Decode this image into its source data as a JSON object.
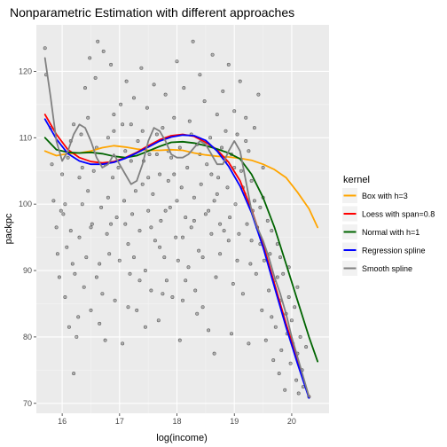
{
  "chart_data": {
    "type": "scatter",
    "title": "Nonparametric Estimation with different approaches",
    "xlabel": "log(income)",
    "ylabel": "packpc",
    "xlim": [
      15.55,
      20.65
    ],
    "ylim": [
      68.5,
      127.0
    ],
    "x_ticks": [
      16,
      17,
      18,
      19,
      20
    ],
    "y_ticks": [
      70,
      80,
      90,
      100,
      110,
      120
    ],
    "grid": true,
    "panel_color": "#ebebeb",
    "legend": {
      "title": "kernel",
      "position": "right",
      "entries": [
        {
          "label": "Box with h=3",
          "color": "#ffa500"
        },
        {
          "label": "Loess with span=0.8",
          "color": "#ff0000"
        },
        {
          "label": "Normal with h=1",
          "color": "#006400"
        },
        {
          "label": "Regression spline",
          "color": "#0000ff"
        },
        {
          "label": "Smooth spline",
          "color": "#808080"
        }
      ]
    },
    "points": [
      [
        15.7,
        123.5
      ],
      [
        15.72,
        119.5
      ],
      [
        15.8,
        111.5
      ],
      [
        15.82,
        106.0
      ],
      [
        15.85,
        100.5
      ],
      [
        15.9,
        96.5
      ],
      [
        15.92,
        92.5
      ],
      [
        15.95,
        89.0
      ],
      [
        15.98,
        99.0
      ],
      [
        16.0,
        104.5
      ],
      [
        16.02,
        98.5
      ],
      [
        16.05,
        86.0
      ],
      [
        16.08,
        93.5
      ],
      [
        16.1,
        107.0
      ],
      [
        16.12,
        81.5
      ],
      [
        16.15,
        109.5
      ],
      [
        16.18,
        91.0
      ],
      [
        16.2,
        74.5
      ],
      [
        16.22,
        89.5
      ],
      [
        16.25,
        80.0
      ],
      [
        16.28,
        83.0
      ],
      [
        16.3,
        95.0
      ],
      [
        16.33,
        110.5
      ],
      [
        16.35,
        100.0
      ],
      [
        16.38,
        87.5
      ],
      [
        16.4,
        117.5
      ],
      [
        16.42,
        92.0
      ],
      [
        16.45,
        113.0
      ],
      [
        16.48,
        122.0
      ],
      [
        16.5,
        84.0
      ],
      [
        16.52,
        97.0
      ],
      [
        16.55,
        105.0
      ],
      [
        16.58,
        119.0
      ],
      [
        16.6,
        89.0
      ],
      [
        16.62,
        124.5
      ],
      [
        16.65,
        82.0
      ],
      [
        16.68,
        99.5
      ],
      [
        16.7,
        86.5
      ],
      [
        16.72,
        123.0
      ],
      [
        16.75,
        79.5
      ],
      [
        16.78,
        95.5
      ],
      [
        16.8,
        110.0
      ],
      [
        16.82,
        92.5
      ],
      [
        16.85,
        121.0
      ],
      [
        16.88,
        104.0
      ],
      [
        16.9,
        113.5
      ],
      [
        16.92,
        85.5
      ],
      [
        16.95,
        98.0
      ],
      [
        16.98,
        105.5
      ],
      [
        17.0,
        91.5
      ],
      [
        17.02,
        115.0
      ],
      [
        17.05,
        79.0
      ],
      [
        17.08,
        100.5
      ],
      [
        17.1,
        108.0
      ],
      [
        17.12,
        118.5
      ],
      [
        17.15,
        94.0
      ],
      [
        17.18,
        89.5
      ],
      [
        17.2,
        112.0
      ],
      [
        17.22,
        98.5
      ],
      [
        17.25,
        116.0
      ],
      [
        17.28,
        102.0
      ],
      [
        17.3,
        84.0
      ],
      [
        17.32,
        109.5
      ],
      [
        17.35,
        96.0
      ],
      [
        17.38,
        120.5
      ],
      [
        17.4,
        103.0
      ],
      [
        17.42,
        106.5
      ],
      [
        17.45,
        90.0
      ],
      [
        17.48,
        114.5
      ],
      [
        17.5,
        99.0
      ],
      [
        17.52,
        107.5
      ],
      [
        17.55,
        87.0
      ],
      [
        17.58,
        101.5
      ],
      [
        17.6,
        118.0
      ],
      [
        17.62,
        94.5
      ],
      [
        17.65,
        110.5
      ],
      [
        17.68,
        82.5
      ],
      [
        17.7,
        104.5
      ],
      [
        17.72,
        97.5
      ],
      [
        17.75,
        111.5
      ],
      [
        17.78,
        92.0
      ],
      [
        17.8,
        116.5
      ],
      [
        17.82,
        88.5
      ],
      [
        17.85,
        103.5
      ],
      [
        17.88,
        99.5
      ],
      [
        17.9,
        107.0
      ],
      [
        17.92,
        86.0
      ],
      [
        17.95,
        113.0
      ],
      [
        17.98,
        95.0
      ],
      [
        18.0,
        121.5
      ],
      [
        18.02,
        91.5
      ],
      [
        18.05,
        108.5
      ],
      [
        18.08,
        102.5
      ],
      [
        18.1,
        85.5
      ],
      [
        18.12,
        117.5
      ],
      [
        18.15,
        98.0
      ],
      [
        18.18,
        105.5
      ],
      [
        18.2,
        90.5
      ],
      [
        18.22,
        112.5
      ],
      [
        18.25,
        96.5
      ],
      [
        18.28,
        124.5
      ],
      [
        18.3,
        101.0
      ],
      [
        18.32,
        87.0
      ],
      [
        18.35,
        109.0
      ],
      [
        18.38,
        93.0
      ],
      [
        18.4,
        119.5
      ],
      [
        18.42,
        103.0
      ],
      [
        18.45,
        84.5
      ],
      [
        18.48,
        115.5
      ],
      [
        18.5,
        98.5
      ],
      [
        18.52,
        106.0
      ],
      [
        18.55,
        81.0
      ],
      [
        18.58,
        110.0
      ],
      [
        18.6,
        95.5
      ],
      [
        18.62,
        122.5
      ],
      [
        18.65,
        100.5
      ],
      [
        18.68,
        89.0
      ],
      [
        18.7,
        113.5
      ],
      [
        18.72,
        104.0
      ],
      [
        18.75,
        92.5
      ],
      [
        18.78,
        108.5
      ],
      [
        18.8,
        117.0
      ],
      [
        18.82,
        96.0
      ],
      [
        18.85,
        111.0
      ],
      [
        18.88,
        102.5
      ],
      [
        18.9,
        121.0
      ],
      [
        18.92,
        98.0
      ],
      [
        18.95,
        107.5
      ],
      [
        18.98,
        88.0
      ],
      [
        19.0,
        114.0
      ],
      [
        19.02,
        100.0
      ],
      [
        19.05,
        110.5
      ],
      [
        19.08,
        95.5
      ],
      [
        19.1,
        118.5
      ],
      [
        19.12,
        105.0
      ],
      [
        19.15,
        86.5
      ],
      [
        19.18,
        101.5
      ],
      [
        19.2,
        113.0
      ],
      [
        19.22,
        97.0
      ],
      [
        19.25,
        108.0
      ],
      [
        19.28,
        91.0
      ],
      [
        19.3,
        103.5
      ],
      [
        19.32,
        99.0
      ],
      [
        19.35,
        111.5
      ],
      [
        19.38,
        89.5
      ],
      [
        19.4,
        96.5
      ],
      [
        19.42,
        116.5
      ],
      [
        19.45,
        94.0
      ],
      [
        19.48,
        84.0
      ],
      [
        19.5,
        101.0
      ],
      [
        19.52,
        91.5
      ],
      [
        19.55,
        79.5
      ],
      [
        19.58,
        97.5
      ],
      [
        19.6,
        87.0
      ],
      [
        19.62,
        92.5
      ],
      [
        19.65,
        83.0
      ],
      [
        19.68,
        76.5
      ],
      [
        19.7,
        88.5
      ],
      [
        19.72,
        81.5
      ],
      [
        19.75,
        94.0
      ],
      [
        19.78,
        74.5
      ],
      [
        19.8,
        85.5
      ],
      [
        19.82,
        78.0
      ],
      [
        19.85,
        89.5
      ],
      [
        19.88,
        72.0
      ],
      [
        19.9,
        83.5
      ],
      [
        19.92,
        80.5
      ],
      [
        19.95,
        86.0
      ],
      [
        19.98,
        76.0
      ],
      [
        20.0,
        82.5
      ],
      [
        20.02,
        79.0
      ],
      [
        20.05,
        84.5
      ],
      [
        20.08,
        73.5
      ],
      [
        20.1,
        77.5
      ],
      [
        20.12,
        71.5
      ],
      [
        20.15,
        80.0
      ],
      [
        20.18,
        75.0
      ],
      [
        20.2,
        72.5
      ],
      [
        20.25,
        78.5
      ],
      [
        20.3,
        71.0
      ],
      [
        16.05,
        100.0
      ],
      [
        16.3,
        104.0
      ],
      [
        16.6,
        108.5
      ],
      [
        16.9,
        111.0
      ],
      [
        17.2,
        106.5
      ],
      [
        17.5,
        104.0
      ],
      [
        17.8,
        99.0
      ],
      [
        18.1,
        95.0
      ],
      [
        18.4,
        107.5
      ],
      [
        18.7,
        101.5
      ],
      [
        19.0,
        105.5
      ],
      [
        19.3,
        94.5
      ],
      [
        16.15,
        96.0
      ],
      [
        16.45,
        102.0
      ],
      [
        16.75,
        106.0
      ],
      [
        17.05,
        112.0
      ],
      [
        17.35,
        88.5
      ],
      [
        17.65,
        107.5
      ],
      [
        17.95,
        104.5
      ],
      [
        18.25,
        110.5
      ],
      [
        18.55,
        99.0
      ],
      [
        18.85,
        106.5
      ],
      [
        19.15,
        102.5
      ],
      [
        19.45,
        99.5
      ],
      [
        19.75,
        89.0
      ],
      [
        16.2,
        112.0
      ],
      [
        16.5,
        96.5
      ],
      [
        16.8,
        101.0
      ],
      [
        17.1,
        97.0
      ],
      [
        17.4,
        111.0
      ],
      [
        17.7,
        93.5
      ],
      [
        18.0,
        100.5
      ],
      [
        18.3,
        97.5
      ],
      [
        18.6,
        104.5
      ],
      [
        18.9,
        94.5
      ],
      [
        19.2,
        109.5
      ],
      [
        19.5,
        105.5
      ],
      [
        19.8,
        92.0
      ],
      [
        20.1,
        87.5
      ],
      [
        16.65,
        91.0
      ],
      [
        17.15,
        84.5
      ],
      [
        17.45,
        81.5
      ],
      [
        17.75,
        86.5
      ],
      [
        18.05,
        79.5
      ],
      [
        18.35,
        83.5
      ],
      [
        18.65,
        77.5
      ],
      [
        18.95,
        80.5
      ],
      [
        19.25,
        79.0
      ],
      [
        16.35,
        105.5
      ],
      [
        16.85,
        97.0
      ],
      [
        17.25,
        92.0
      ],
      [
        17.55,
        96.5
      ],
      [
        17.85,
        108.0
      ],
      [
        18.15,
        88.5
      ],
      [
        18.45,
        92.0
      ],
      [
        18.75,
        97.0
      ],
      [
        19.05,
        91.5
      ],
      [
        19.35,
        100.5
      ],
      [
        19.65,
        96.0
      ],
      [
        19.95,
        90.5
      ]
    ],
    "series": [
      {
        "name": "Box with h=3",
        "color": "#ffa500",
        "x": [
          15.7,
          15.9,
          16.1,
          16.3,
          16.5,
          16.7,
          16.9,
          17.1,
          17.3,
          17.5,
          17.7,
          17.9,
          18.1,
          18.3,
          18.5,
          18.7,
          18.9,
          19.1,
          19.3,
          19.5,
          19.7,
          19.9,
          20.1,
          20.3,
          20.45
        ],
        "y": [
          108.0,
          107.3,
          107.6,
          107.7,
          108.0,
          108.5,
          108.8,
          108.6,
          108.3,
          108.1,
          108.1,
          108.2,
          108.1,
          107.7,
          107.4,
          107.2,
          107.1,
          106.9,
          106.6,
          106.0,
          105.2,
          104.0,
          101.8,
          99.3,
          96.5
        ]
      },
      {
        "name": "Loess with span=0.8",
        "color": "#ff0000",
        "x": [
          15.7,
          15.9,
          16.1,
          16.3,
          16.5,
          16.7,
          16.9,
          17.1,
          17.3,
          17.5,
          17.7,
          17.9,
          18.1,
          18.3,
          18.5,
          18.7,
          18.9,
          19.1,
          19.3,
          19.5,
          19.7,
          19.9,
          20.1,
          20.3
        ],
        "y": [
          113.5,
          110.5,
          108.2,
          107.0,
          106.4,
          106.2,
          106.4,
          107.0,
          107.8,
          108.8,
          109.7,
          110.3,
          110.5,
          110.2,
          109.3,
          108.2,
          106.3,
          103.5,
          99.2,
          94.0,
          88.0,
          82.0,
          76.5,
          71.0
        ]
      },
      {
        "name": "Normal with h=1",
        "color": "#006400",
        "x": [
          15.7,
          15.9,
          16.1,
          16.3,
          16.5,
          16.7,
          16.9,
          17.1,
          17.3,
          17.5,
          17.7,
          17.9,
          18.1,
          18.3,
          18.5,
          18.7,
          18.9,
          19.1,
          19.3,
          19.5,
          19.7,
          19.9,
          20.1,
          20.3,
          20.45
        ],
        "y": [
          110.0,
          108.2,
          107.8,
          107.7,
          107.8,
          107.6,
          107.2,
          107.0,
          107.3,
          108.0,
          108.7,
          109.3,
          109.4,
          109.2,
          108.8,
          108.3,
          107.7,
          106.8,
          104.5,
          101.0,
          96.5,
          91.0,
          85.5,
          80.0,
          76.3
        ]
      },
      {
        "name": "Regression spline",
        "color": "#0000ff",
        "x": [
          15.7,
          15.9,
          16.1,
          16.3,
          16.5,
          16.7,
          16.9,
          17.1,
          17.3,
          17.5,
          17.7,
          17.9,
          18.1,
          18.3,
          18.5,
          18.7,
          18.9,
          19.1,
          19.3,
          19.5,
          19.7,
          19.9,
          20.1,
          20.3
        ],
        "y": [
          112.8,
          109.8,
          107.6,
          106.5,
          106.0,
          106.0,
          106.3,
          106.9,
          107.7,
          108.6,
          109.5,
          110.1,
          110.4,
          110.3,
          109.6,
          108.0,
          105.7,
          102.7,
          98.7,
          93.5,
          87.5,
          81.5,
          76.0,
          70.8
        ]
      },
      {
        "name": "Smooth spline",
        "color": "#808080",
        "x": [
          15.7,
          15.8,
          15.9,
          16.0,
          16.1,
          16.2,
          16.3,
          16.4,
          16.5,
          16.6,
          16.7,
          16.8,
          16.9,
          17.0,
          17.1,
          17.2,
          17.3,
          17.4,
          17.5,
          17.6,
          17.7,
          17.8,
          17.9,
          18.0,
          18.1,
          18.2,
          18.3,
          18.4,
          18.5,
          18.6,
          18.7,
          18.8,
          18.9,
          19.0,
          19.1,
          19.2,
          19.3,
          19.4,
          19.5,
          19.6,
          19.7,
          19.8,
          19.9,
          20.0,
          20.1,
          20.2,
          20.3
        ],
        "y": [
          122.0,
          116.0,
          109.5,
          106.5,
          108.0,
          110.5,
          112.0,
          111.5,
          109.5,
          107.0,
          105.5,
          106.0,
          107.5,
          106.0,
          104.5,
          103.0,
          103.5,
          106.0,
          109.5,
          111.5,
          111.0,
          109.5,
          107.5,
          107.0,
          107.0,
          107.5,
          108.5,
          109.5,
          109.0,
          107.5,
          106.0,
          106.0,
          108.0,
          109.5,
          108.0,
          103.5,
          99.0,
          96.5,
          94.5,
          92.0,
          89.0,
          86.5,
          83.5,
          80.0,
          77.0,
          74.0,
          71.0
        ]
      }
    ]
  }
}
